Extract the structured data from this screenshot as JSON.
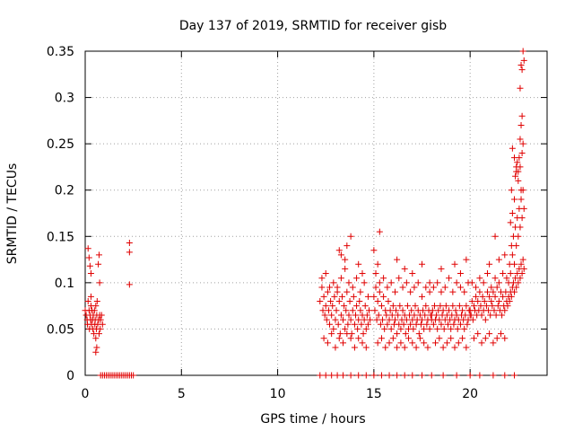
{
  "chart_data": {
    "type": "scatter",
    "title": "Day 137 of 2019, SRMTID for receiver gisb",
    "xlabel": "GPS time / hours",
    "ylabel": "SRMTID / TECUs",
    "xlim": [
      0,
      24
    ],
    "ylim": [
      0,
      0.35
    ],
    "x_ticks": [
      0,
      5,
      10,
      15,
      20
    ],
    "x_tick_labels": [
      "0",
      "5",
      "10",
      "15",
      "20"
    ],
    "y_ticks": [
      0,
      0.05,
      0.1,
      0.15,
      0.2,
      0.25,
      0.3,
      0.35
    ],
    "y_tick_labels": [
      "0",
      "0.05",
      "0.1",
      "0.15",
      "0.2",
      "0.25",
      "0.3",
      "0.35"
    ],
    "grid": true,
    "marker": "+",
    "color": "#e00000",
    "series": [
      {
        "x": [
          0.0,
          0.05,
          0.1,
          0.12,
          0.15,
          0.2,
          0.22,
          0.25,
          0.28,
          0.3,
          0.32,
          0.35,
          0.38,
          0.4,
          0.42,
          0.45,
          0.48,
          0.5,
          0.52,
          0.55,
          0.58,
          0.6,
          0.62,
          0.65,
          0.7,
          0.72,
          0.75,
          0.78,
          0.8,
          0.85,
          0.9,
          0.15,
          0.2,
          0.25,
          0.3,
          0.3,
          0.55,
          0.68,
          0.72,
          0.75,
          0.55,
          0.6,
          0.8,
          0.9,
          1.0,
          1.1,
          1.2,
          1.3,
          1.4,
          1.5,
          1.6,
          1.7,
          1.8,
          1.9,
          2.0,
          2.1,
          2.2,
          2.3,
          2.4,
          2.5,
          2.3,
          2.3,
          2.3,
          12.2,
          12.3,
          12.35,
          12.4,
          12.45,
          12.5,
          12.55,
          12.6,
          12.65,
          12.7,
          12.75,
          12.8,
          12.85,
          12.9,
          12.95,
          13.0,
          13.05,
          13.1,
          13.15,
          13.2,
          13.25,
          13.3,
          13.35,
          13.4,
          13.45,
          13.5,
          13.55,
          13.6,
          13.65,
          13.7,
          13.75,
          13.8,
          13.85,
          13.9,
          13.95,
          14.0,
          14.05,
          14.1,
          14.15,
          14.2,
          14.25,
          14.3,
          14.35,
          14.4,
          14.45,
          14.5,
          14.55,
          14.6,
          14.65,
          14.7,
          14.75,
          14.8,
          12.3,
          12.5,
          12.7,
          12.9,
          13.1,
          13.3,
          13.5,
          13.7,
          13.9,
          14.1,
          14.3,
          14.5,
          14.7,
          12.4,
          12.6,
          12.8,
          13.0,
          13.2,
          13.4,
          13.6,
          13.8,
          14.0,
          14.2,
          14.4,
          14.6,
          13.2,
          13.3,
          13.5,
          13.6,
          13.8,
          14.2,
          14.4,
          15.0,
          15.05,
          15.1,
          15.15,
          15.2,
          15.25,
          15.3,
          15.35,
          15.4,
          15.45,
          15.5,
          15.55,
          15.6,
          15.65,
          15.7,
          15.75,
          15.8,
          15.85,
          15.9,
          15.95,
          16.0,
          16.05,
          16.1,
          16.15,
          16.2,
          16.25,
          16.3,
          16.35,
          16.4,
          16.45,
          16.5,
          16.55,
          16.6,
          16.65,
          16.7,
          16.75,
          16.8,
          16.85,
          16.9,
          16.95,
          17.0,
          17.05,
          17.1,
          17.15,
          17.2,
          17.25,
          17.3,
          17.35,
          17.4,
          17.45,
          17.5,
          17.55,
          17.6,
          17.65,
          17.7,
          17.75,
          17.8,
          17.85,
          17.9,
          17.95,
          18.0,
          15.1,
          15.3,
          15.5,
          15.7,
          15.9,
          16.1,
          16.3,
          16.5,
          16.7,
          16.9,
          17.1,
          17.3,
          17.5,
          17.7,
          17.9,
          15.2,
          15.4,
          15.6,
          15.8,
          16.0,
          16.2,
          16.4,
          16.6,
          16.8,
          17.0,
          17.2,
          17.4,
          17.6,
          17.8,
          15.0,
          15.2,
          15.3,
          16.2,
          16.6,
          17.0,
          17.5,
          17.9,
          18.0,
          18.05,
          18.1,
          18.15,
          18.2,
          18.25,
          18.3,
          18.35,
          18.4,
          18.45,
          18.5,
          18.55,
          18.6,
          18.65,
          18.7,
          18.75,
          18.8,
          18.85,
          18.9,
          18.95,
          19.0,
          19.05,
          19.1,
          19.15,
          19.2,
          19.25,
          19.3,
          19.35,
          19.4,
          19.45,
          19.5,
          19.55,
          19.6,
          19.65,
          19.7,
          19.75,
          19.8,
          19.85,
          19.9,
          19.95,
          20.0,
          18.1,
          18.3,
          18.5,
          18.7,
          18.9,
          19.1,
          19.3,
          19.5,
          19.7,
          19.9,
          18.2,
          18.4,
          18.6,
          18.8,
          19.0,
          19.2,
          19.4,
          19.6,
          19.8,
          18.5,
          19.2,
          19.5,
          19.8,
          20.0,
          20.05,
          20.1,
          20.15,
          20.2,
          20.25,
          20.3,
          20.35,
          20.4,
          20.45,
          20.5,
          20.55,
          20.6,
          20.65,
          20.7,
          20.75,
          20.8,
          20.85,
          20.9,
          20.95,
          21.0,
          21.05,
          21.1,
          21.15,
          21.2,
          21.25,
          21.3,
          21.35,
          21.4,
          21.45,
          21.5,
          21.55,
          21.6,
          21.65,
          21.7,
          21.75,
          21.8,
          21.85,
          21.9,
          21.95,
          22.0,
          20.1,
          20.3,
          20.5,
          20.7,
          20.9,
          21.1,
          21.3,
          21.5,
          21.7,
          21.9,
          20.2,
          20.4,
          20.6,
          20.8,
          21.0,
          21.2,
          21.4,
          21.6,
          21.8,
          21.0,
          21.3,
          21.5,
          21.8,
          22.0,
          22.05,
          22.1,
          22.15,
          22.2,
          22.25,
          22.3,
          22.35,
          22.4,
          22.45,
          22.5,
          22.55,
          22.6,
          22.65,
          22.7,
          22.75,
          22.8,
          22.05,
          22.1,
          22.15,
          22.2,
          22.25,
          22.3,
          22.35,
          22.4,
          22.45,
          22.5,
          22.55,
          22.6,
          22.65,
          22.7,
          22.75,
          22.8,
          22.1,
          22.15,
          22.2,
          22.3,
          22.35,
          22.4,
          22.45,
          22.5,
          22.55,
          22.6,
          22.65,
          22.7,
          22.2,
          22.3,
          22.4,
          22.5,
          22.6,
          22.65,
          22.7,
          22.75,
          22.6,
          22.65,
          22.7,
          22.75,
          22.8,
          12.2,
          12.5,
          12.8,
          13.1,
          13.4,
          13.8,
          14.2,
          14.6,
          15.0,
          15.4,
          15.8,
          16.2,
          16.6,
          17.0,
          17.5,
          18.0,
          18.6,
          19.3,
          20.0,
          20.5,
          21.2,
          21.8,
          22.3
        ],
        "y": [
          0.07,
          0.065,
          0.06,
          0.055,
          0.08,
          0.07,
          0.05,
          0.065,
          0.06,
          0.075,
          0.055,
          0.07,
          0.06,
          0.05,
          0.065,
          0.045,
          0.07,
          0.055,
          0.06,
          0.075,
          0.05,
          0.065,
          0.08,
          0.055,
          0.06,
          0.045,
          0.065,
          0.05,
          0.06,
          0.065,
          0.055,
          0.137,
          0.127,
          0.118,
          0.11,
          0.085,
          0.04,
          0.12,
          0.13,
          0.1,
          0.025,
          0.03,
          0.0,
          0.0,
          0.0,
          0.0,
          0.0,
          0.0,
          0.0,
          0.0,
          0.0,
          0.0,
          0.0,
          0.0,
          0.0,
          0.0,
          0.0,
          0.0,
          0.0,
          0.0,
          0.143,
          0.133,
          0.098,
          0.08,
          0.095,
          0.07,
          0.085,
          0.065,
          0.075,
          0.06,
          0.09,
          0.07,
          0.055,
          0.08,
          0.065,
          0.075,
          0.05,
          0.085,
          0.06,
          0.07,
          0.095,
          0.055,
          0.08,
          0.045,
          0.065,
          0.085,
          0.06,
          0.075,
          0.05,
          0.07,
          0.09,
          0.055,
          0.065,
          0.08,
          0.06,
          0.045,
          0.07,
          0.085,
          0.055,
          0.065,
          0.075,
          0.05,
          0.06,
          0.08,
          0.07,
          0.055,
          0.065,
          0.045,
          0.06,
          0.075,
          0.05,
          0.065,
          0.055,
          0.07,
          0.06,
          0.105,
          0.11,
          0.095,
          0.1,
          0.09,
          0.105,
          0.115,
          0.1,
          0.095,
          0.105,
          0.09,
          0.1,
          0.085,
          0.04,
          0.035,
          0.045,
          0.03,
          0.04,
          0.035,
          0.045,
          0.04,
          0.03,
          0.04,
          0.035,
          0.03,
          0.135,
          0.13,
          0.125,
          0.14,
          0.15,
          0.12,
          0.11,
          0.085,
          0.07,
          0.095,
          0.06,
          0.08,
          0.065,
          0.09,
          0.055,
          0.075,
          0.06,
          0.085,
          0.05,
          0.07,
          0.065,
          0.055,
          0.08,
          0.06,
          0.07,
          0.05,
          0.065,
          0.075,
          0.055,
          0.06,
          0.07,
          0.045,
          0.065,
          0.055,
          0.075,
          0.05,
          0.06,
          0.07,
          0.055,
          0.065,
          0.045,
          0.06,
          0.075,
          0.05,
          0.065,
          0.055,
          0.07,
          0.06,
          0.05,
          0.065,
          0.075,
          0.055,
          0.06,
          0.07,
          0.045,
          0.065,
          0.055,
          0.06,
          0.07,
          0.05,
          0.065,
          0.075,
          0.055,
          0.06,
          0.07,
          0.05,
          0.065,
          0.06,
          0.11,
          0.1,
          0.105,
          0.095,
          0.1,
          0.09,
          0.105,
          0.095,
          0.1,
          0.09,
          0.095,
          0.1,
          0.085,
          0.095,
          0.09,
          0.035,
          0.04,
          0.03,
          0.035,
          0.04,
          0.03,
          0.035,
          0.03,
          0.04,
          0.035,
          0.03,
          0.04,
          0.035,
          0.03,
          0.135,
          0.12,
          0.155,
          0.125,
          0.115,
          0.11,
          0.12,
          0.1,
          0.065,
          0.07,
          0.055,
          0.075,
          0.06,
          0.065,
          0.05,
          0.07,
          0.06,
          0.075,
          0.055,
          0.065,
          0.07,
          0.05,
          0.06,
          0.075,
          0.065,
          0.055,
          0.07,
          0.06,
          0.05,
          0.065,
          0.075,
          0.055,
          0.06,
          0.07,
          0.065,
          0.05,
          0.06,
          0.075,
          0.055,
          0.065,
          0.07,
          0.06,
          0.05,
          0.065,
          0.075,
          0.055,
          0.06,
          0.07,
          0.065,
          0.095,
          0.1,
          0.09,
          0.095,
          0.105,
          0.09,
          0.1,
          0.095,
          0.09,
          0.1,
          0.035,
          0.04,
          0.03,
          0.035,
          0.04,
          0.03,
          0.035,
          0.04,
          0.03,
          0.115,
          0.12,
          0.11,
          0.125,
          0.07,
          0.065,
          0.08,
          0.06,
          0.075,
          0.07,
          0.085,
          0.065,
          0.08,
          0.07,
          0.09,
          0.075,
          0.065,
          0.085,
          0.07,
          0.08,
          0.06,
          0.075,
          0.09,
          0.07,
          0.085,
          0.065,
          0.08,
          0.075,
          0.09,
          0.07,
          0.085,
          0.065,
          0.095,
          0.075,
          0.08,
          0.07,
          0.09,
          0.065,
          0.085,
          0.075,
          0.07,
          0.09,
          0.08,
          0.075,
          0.085,
          0.1,
          0.095,
          0.105,
          0.1,
          0.11,
          0.095,
          0.105,
          0.1,
          0.11,
          0.105,
          0.04,
          0.045,
          0.035,
          0.04,
          0.045,
          0.035,
          0.04,
          0.045,
          0.04,
          0.12,
          0.15,
          0.125,
          0.13,
          0.1,
          0.12,
          0.11,
          0.14,
          0.13,
          0.15,
          0.12,
          0.16,
          0.14,
          0.17,
          0.15,
          0.18,
          0.16,
          0.19,
          0.17,
          0.2,
          0.18,
          0.08,
          0.09,
          0.085,
          0.095,
          0.1,
          0.09,
          0.105,
          0.095,
          0.11,
          0.1,
          0.115,
          0.105,
          0.12,
          0.11,
          0.125,
          0.115,
          0.165,
          0.2,
          0.175,
          0.19,
          0.215,
          0.22,
          0.23,
          0.22,
          0.235,
          0.225,
          0.2,
          0.24,
          0.245,
          0.235,
          0.225,
          0.21,
          0.255,
          0.27,
          0.28,
          0.25,
          0.31,
          0.335,
          0.33,
          0.35,
          0.34,
          0.0,
          0.0,
          0.0,
          0.0,
          0.0,
          0.0,
          0.0,
          0.0,
          0.0,
          0.0,
          0.0,
          0.0,
          0.0,
          0.0,
          0.0,
          0.0,
          0.0,
          0.0,
          0.0,
          0.0,
          0.0,
          0.0,
          0.0
        ]
      }
    ]
  }
}
